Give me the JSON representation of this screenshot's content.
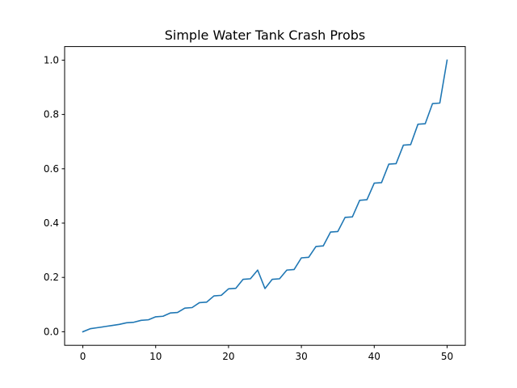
{
  "chart_data": {
    "type": "line",
    "title": "Simple Water Tank Crash Probs",
    "xlabel": "",
    "ylabel": "",
    "xlim": [
      -2.5,
      52.5
    ],
    "ylim": [
      -0.05,
      1.05
    ],
    "xticks": [
      0,
      10,
      20,
      30,
      40,
      50
    ],
    "xtick_labels": [
      "0",
      "10",
      "20",
      "30",
      "40",
      "50"
    ],
    "yticks": [
      0.0,
      0.2,
      0.4,
      0.6,
      0.8,
      1.0
    ],
    "ytick_labels": [
      "0.0",
      "0.2",
      "0.4",
      "0.6",
      "0.8",
      "1.0"
    ],
    "grid": false,
    "series": [
      {
        "color": "#1f77b4",
        "x": [
          0,
          1,
          2,
          3,
          4,
          5,
          6,
          7,
          8,
          9,
          10,
          11,
          12,
          13,
          14,
          15,
          16,
          17,
          18,
          19,
          20,
          21,
          22,
          23,
          24,
          25,
          26,
          27,
          28,
          29,
          30,
          31,
          32,
          33,
          34,
          35,
          36,
          37,
          38,
          39,
          40,
          41,
          42,
          43,
          44,
          45,
          46,
          47,
          48,
          49,
          50
        ],
        "y": [
          0.0,
          0.011,
          0.015,
          0.019,
          0.023,
          0.027,
          0.033,
          0.035,
          0.042,
          0.044,
          0.055,
          0.057,
          0.069,
          0.071,
          0.087,
          0.089,
          0.107,
          0.109,
          0.132,
          0.134,
          0.158,
          0.16,
          0.193,
          0.195,
          0.227,
          0.159,
          0.193,
          0.195,
          0.227,
          0.229,
          0.272,
          0.274,
          0.314,
          0.316,
          0.367,
          0.369,
          0.421,
          0.423,
          0.484,
          0.486,
          0.547,
          0.549,
          0.617,
          0.619,
          0.687,
          0.689,
          0.764,
          0.766,
          0.84,
          0.842,
          1.0
        ]
      }
    ]
  }
}
